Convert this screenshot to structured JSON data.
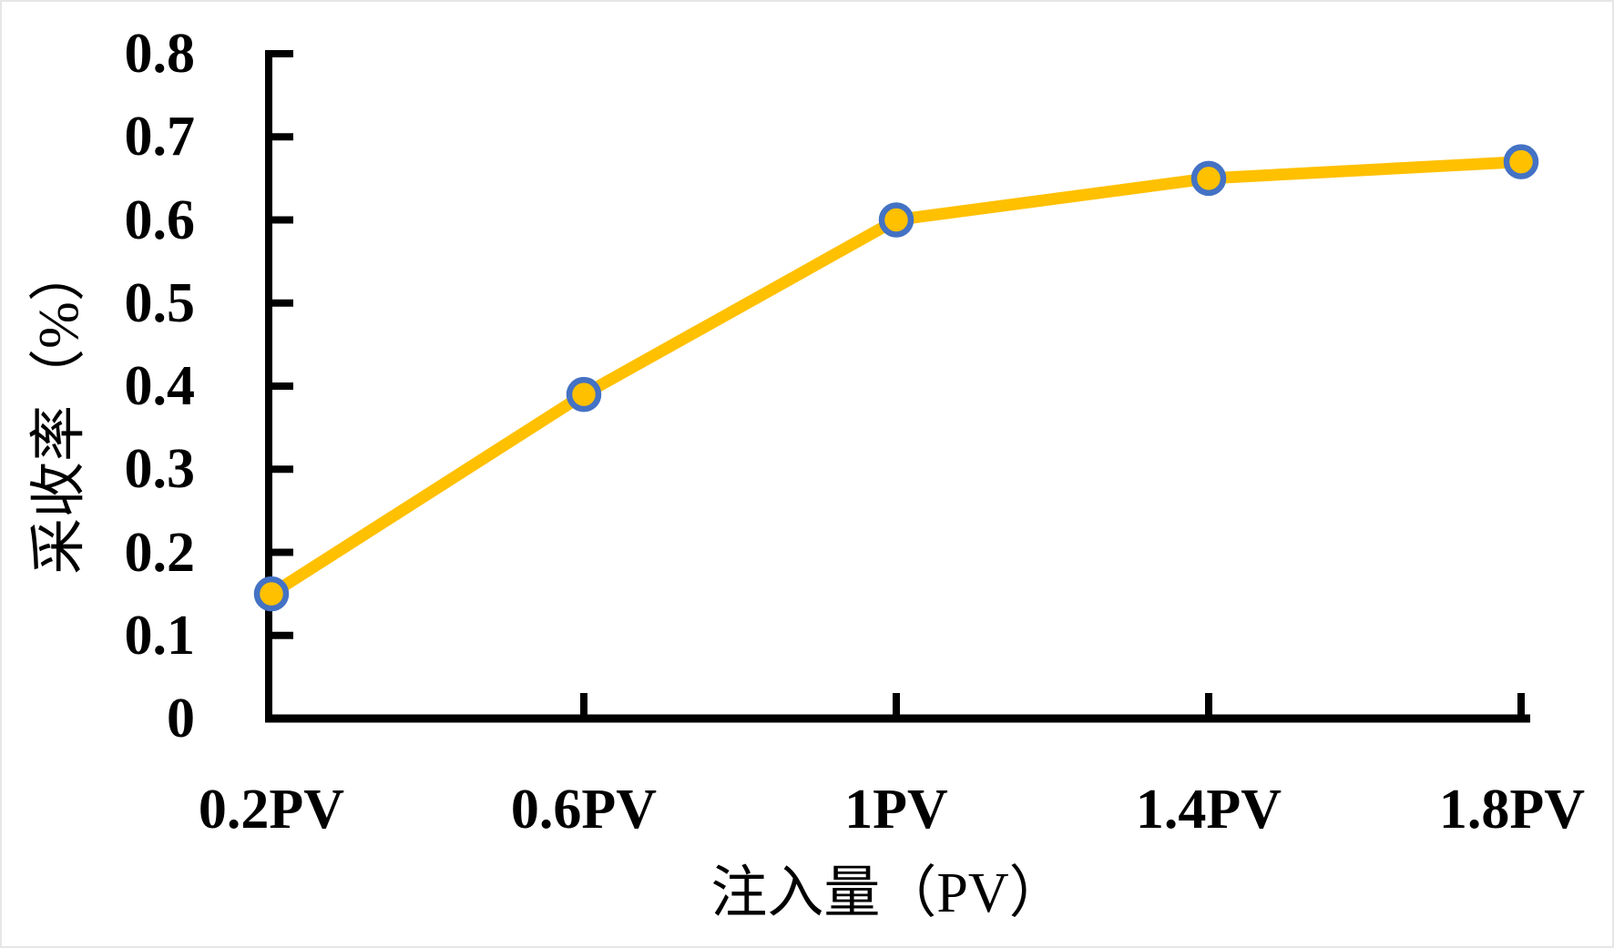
{
  "chart_data": {
    "type": "line",
    "categories": [
      "0.2PV",
      "0.6PV",
      "1PV",
      "1.4PV",
      "1.8PV"
    ],
    "series": [
      {
        "name": "采收率",
        "values": [
          0.15,
          0.39,
          0.6,
          0.65,
          0.67
        ]
      }
    ],
    "title": "",
    "xlabel": "注入量（PV）",
    "ylabel": "采收率（%）",
    "ylim": [
      0,
      0.8
    ],
    "ytick_step": 0.1,
    "ytick_labels": [
      "0",
      "0.1",
      "0.2",
      "0.3",
      "0.4",
      "0.5",
      "0.6",
      "0.7",
      "0.8"
    ],
    "grid": false,
    "legend_position": "none",
    "marker": "circle",
    "colors": {
      "line": "#FFC000",
      "marker_fill": "#FFC000",
      "marker_border": "#4472C4",
      "axis": "#000000",
      "text": "#000000"
    }
  }
}
